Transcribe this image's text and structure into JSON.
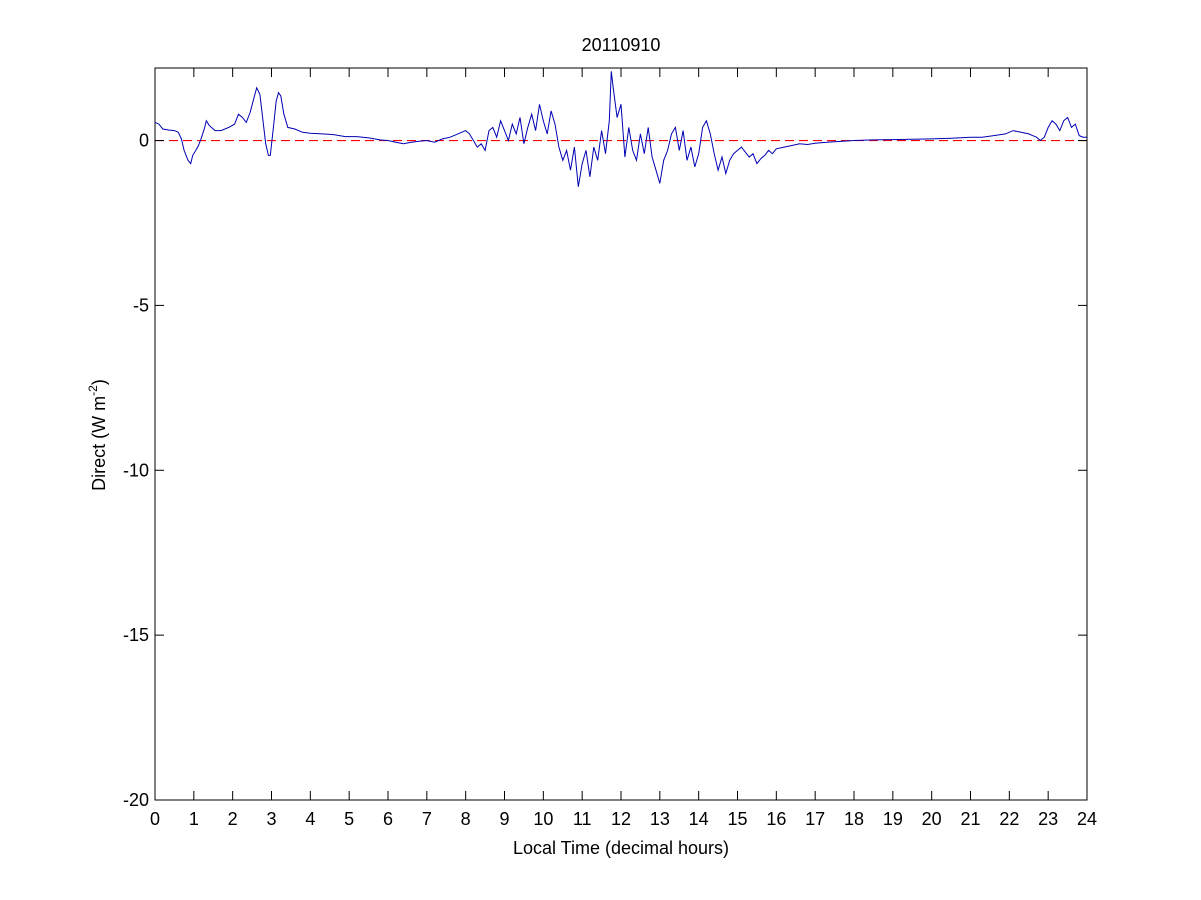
{
  "chart_data": {
    "type": "line",
    "title": "20110910",
    "xlabel": "Local Time (decimal hours)",
    "ylabel": {
      "base": "Direct (W m",
      "superscript": "-2",
      "suffix": ")"
    },
    "xlim": [
      0,
      24
    ],
    "ylim": [
      -20,
      2.2
    ],
    "xticks": [
      0,
      1,
      2,
      3,
      4,
      5,
      6,
      7,
      8,
      9,
      10,
      11,
      12,
      13,
      14,
      15,
      16,
      17,
      18,
      19,
      20,
      21,
      22,
      23,
      24
    ],
    "yticks": [
      -20,
      -15,
      -10,
      -5,
      0
    ],
    "grid": false,
    "legend": "none",
    "colors": {
      "series": "#0000b4",
      "reference": "#ff0000",
      "axes": "#000000",
      "background": "#ffffff"
    },
    "reference_line": {
      "y": 0,
      "style": "dashed"
    },
    "series": [
      {
        "points": [
          [
            0.0,
            0.55
          ],
          [
            0.1,
            0.5
          ],
          [
            0.2,
            0.35
          ],
          [
            0.35,
            0.32
          ],
          [
            0.5,
            0.3
          ],
          [
            0.6,
            0.25
          ],
          [
            0.68,
            0.05
          ],
          [
            0.75,
            -0.3
          ],
          [
            0.8,
            -0.45
          ],
          [
            0.85,
            -0.6
          ],
          [
            0.92,
            -0.7
          ],
          [
            0.97,
            -0.45
          ],
          [
            1.05,
            -0.3
          ],
          [
            1.12,
            -0.15
          ],
          [
            1.2,
            0.1
          ],
          [
            1.28,
            0.4
          ],
          [
            1.32,
            0.6
          ],
          [
            1.4,
            0.45
          ],
          [
            1.55,
            0.3
          ],
          [
            1.7,
            0.3
          ],
          [
            1.9,
            0.4
          ],
          [
            2.05,
            0.5
          ],
          [
            2.15,
            0.8
          ],
          [
            2.25,
            0.7
          ],
          [
            2.35,
            0.55
          ],
          [
            2.45,
            0.85
          ],
          [
            2.55,
            1.3
          ],
          [
            2.62,
            1.6
          ],
          [
            2.7,
            1.4
          ],
          [
            2.78,
            0.6
          ],
          [
            2.85,
            -0.1
          ],
          [
            2.92,
            -0.45
          ],
          [
            2.97,
            -0.45
          ],
          [
            3.05,
            0.4
          ],
          [
            3.12,
            1.2
          ],
          [
            3.18,
            1.45
          ],
          [
            3.24,
            1.35
          ],
          [
            3.32,
            0.8
          ],
          [
            3.42,
            0.4
          ],
          [
            3.6,
            0.35
          ],
          [
            3.8,
            0.25
          ],
          [
            4.0,
            0.22
          ],
          [
            4.3,
            0.2
          ],
          [
            4.6,
            0.18
          ],
          [
            4.9,
            0.12
          ],
          [
            5.2,
            0.12
          ],
          [
            5.5,
            0.08
          ],
          [
            5.8,
            0.02
          ],
          [
            6.0,
            0.0
          ],
          [
            6.2,
            -0.05
          ],
          [
            6.4,
            -0.1
          ],
          [
            6.6,
            -0.05
          ],
          [
            6.8,
            -0.02
          ],
          [
            7.0,
            0.0
          ],
          [
            7.2,
            -0.05
          ],
          [
            7.4,
            0.05
          ],
          [
            7.6,
            0.1
          ],
          [
            7.8,
            0.2
          ],
          [
            8.0,
            0.3
          ],
          [
            8.1,
            0.2
          ],
          [
            8.2,
            0.0
          ],
          [
            8.3,
            -0.2
          ],
          [
            8.4,
            -0.1
          ],
          [
            8.5,
            -0.3
          ],
          [
            8.6,
            0.3
          ],
          [
            8.7,
            0.4
          ],
          [
            8.8,
            0.1
          ],
          [
            8.9,
            0.6
          ],
          [
            9.0,
            0.3
          ],
          [
            9.1,
            0.0
          ],
          [
            9.2,
            0.5
          ],
          [
            9.3,
            0.2
          ],
          [
            9.4,
            0.7
          ],
          [
            9.5,
            -0.1
          ],
          [
            9.6,
            0.4
          ],
          [
            9.7,
            0.8
          ],
          [
            9.8,
            0.3
          ],
          [
            9.9,
            1.1
          ],
          [
            10.0,
            0.6
          ],
          [
            10.1,
            0.2
          ],
          [
            10.2,
            0.9
          ],
          [
            10.3,
            0.5
          ],
          [
            10.4,
            -0.2
          ],
          [
            10.5,
            -0.6
          ],
          [
            10.6,
            -0.3
          ],
          [
            10.7,
            -0.9
          ],
          [
            10.8,
            -0.2
          ],
          [
            10.9,
            -1.4
          ],
          [
            11.0,
            -0.7
          ],
          [
            11.1,
            -0.3
          ],
          [
            11.2,
            -1.1
          ],
          [
            11.3,
            -0.2
          ],
          [
            11.4,
            -0.6
          ],
          [
            11.5,
            0.3
          ],
          [
            11.6,
            -0.4
          ],
          [
            11.7,
            0.6
          ],
          [
            11.75,
            2.1
          ],
          [
            11.8,
            1.6
          ],
          [
            11.9,
            0.7
          ],
          [
            12.0,
            1.1
          ],
          [
            12.1,
            -0.5
          ],
          [
            12.2,
            0.4
          ],
          [
            12.3,
            -0.3
          ],
          [
            12.4,
            -0.6
          ],
          [
            12.5,
            0.2
          ],
          [
            12.6,
            -0.4
          ],
          [
            12.7,
            0.4
          ],
          [
            12.8,
            -0.5
          ],
          [
            12.9,
            -0.9
          ],
          [
            13.0,
            -1.3
          ],
          [
            13.1,
            -0.6
          ],
          [
            13.2,
            -0.3
          ],
          [
            13.3,
            0.2
          ],
          [
            13.4,
            0.4
          ],
          [
            13.5,
            -0.3
          ],
          [
            13.6,
            0.3
          ],
          [
            13.7,
            -0.6
          ],
          [
            13.8,
            -0.2
          ],
          [
            13.9,
            -0.8
          ],
          [
            14.0,
            -0.4
          ],
          [
            14.1,
            0.4
          ],
          [
            14.2,
            0.6
          ],
          [
            14.3,
            0.2
          ],
          [
            14.4,
            -0.4
          ],
          [
            14.5,
            -0.9
          ],
          [
            14.6,
            -0.5
          ],
          [
            14.7,
            -1.0
          ],
          [
            14.8,
            -0.6
          ],
          [
            14.9,
            -0.4
          ],
          [
            15.0,
            -0.3
          ],
          [
            15.1,
            -0.2
          ],
          [
            15.2,
            -0.35
          ],
          [
            15.3,
            -0.5
          ],
          [
            15.4,
            -0.4
          ],
          [
            15.5,
            -0.7
          ],
          [
            15.6,
            -0.55
          ],
          [
            15.7,
            -0.45
          ],
          [
            15.8,
            -0.3
          ],
          [
            15.9,
            -0.4
          ],
          [
            16.0,
            -0.25
          ],
          [
            16.2,
            -0.2
          ],
          [
            16.4,
            -0.15
          ],
          [
            16.6,
            -0.1
          ],
          [
            16.8,
            -0.12
          ],
          [
            17.0,
            -0.08
          ],
          [
            17.3,
            -0.05
          ],
          [
            17.6,
            -0.03
          ],
          [
            18.0,
            0.0
          ],
          [
            18.5,
            0.02
          ],
          [
            19.0,
            0.03
          ],
          [
            19.5,
            0.04
          ],
          [
            20.0,
            0.05
          ],
          [
            20.5,
            0.07
          ],
          [
            21.0,
            0.1
          ],
          [
            21.3,
            0.1
          ],
          [
            21.6,
            0.15
          ],
          [
            21.9,
            0.2
          ],
          [
            22.1,
            0.3
          ],
          [
            22.3,
            0.25
          ],
          [
            22.5,
            0.2
          ],
          [
            22.6,
            0.15
          ],
          [
            22.7,
            0.1
          ],
          [
            22.8,
            0.0
          ],
          [
            22.9,
            0.1
          ],
          [
            23.0,
            0.4
          ],
          [
            23.1,
            0.6
          ],
          [
            23.2,
            0.5
          ],
          [
            23.3,
            0.3
          ],
          [
            23.4,
            0.6
          ],
          [
            23.5,
            0.7
          ],
          [
            23.6,
            0.4
          ],
          [
            23.7,
            0.5
          ],
          [
            23.8,
            0.15
          ],
          [
            23.9,
            0.1
          ],
          [
            24.0,
            0.1
          ]
        ]
      }
    ]
  }
}
